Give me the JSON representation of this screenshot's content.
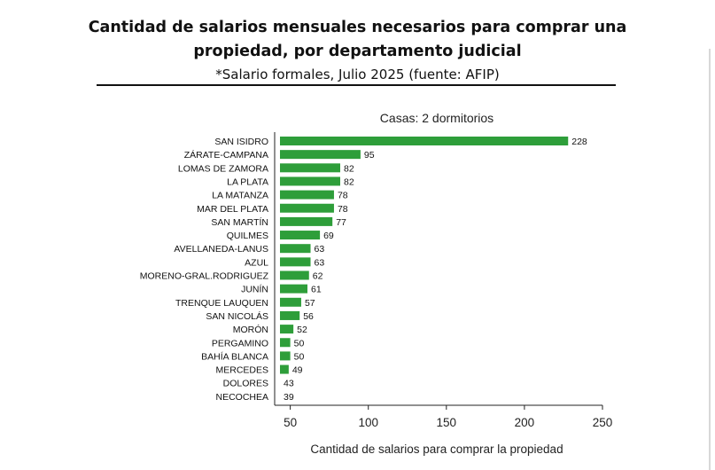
{
  "header": {
    "title_line1": "Cantidad de salarios mensuales necesarios para comprar una",
    "title_line2": "propiedad, por departamento judicial",
    "subtitle": "*Salario formales, Julio 2025 (fuente: AFIP)"
  },
  "chart_data": {
    "type": "bar",
    "orientation": "horizontal",
    "title": "Casas: 2 dormitorios",
    "xlabel": "Cantidad de salarios para comprar la propiedad",
    "ylabel": "",
    "categories": [
      "SAN ISIDRO",
      "ZÁRATE-CAMPANA",
      "LOMAS DE ZAMORA",
      "LA PLATA",
      "LA MATANZA",
      "MAR DEL PLATA",
      "SAN MARTÍN",
      "QUILMES",
      "AVELLANEDA-LANUS",
      "AZUL",
      "MORENO-GRAL.RODRIGUEZ",
      "JUNÍN",
      "TRENQUE LAUQUEN",
      "SAN NICOLÁS",
      "MORÓN",
      "PERGAMINO",
      "BAHÍA BLANCA",
      "MERCEDES",
      "DOLORES",
      "NECOCHEA"
    ],
    "values": [
      228,
      95,
      82,
      82,
      78,
      78,
      77,
      69,
      63,
      63,
      62,
      61,
      57,
      56,
      52,
      50,
      50,
      49,
      43,
      39
    ],
    "xlim": [
      40,
      250
    ],
    "xticks": [
      50,
      100,
      150,
      200,
      250
    ],
    "grid": false,
    "bar_color": "#2e9e3a"
  }
}
